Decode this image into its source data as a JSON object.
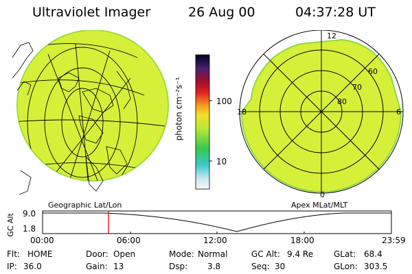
{
  "header": {
    "title": "Ultraviolet Imager",
    "date": "26 Aug 00",
    "time": "04:37:28 UT"
  },
  "geo_panel": {
    "label": "Geographic Lat/Lon"
  },
  "apex_panel": {
    "label": "Apex MLat/MLT",
    "mlt_labels": {
      "top": "12",
      "left": "18",
      "right": "6",
      "bottom": "0"
    },
    "lat_labels": [
      "60",
      "70",
      "80"
    ]
  },
  "colorbar": {
    "unit_label": "photon cm⁻²s⁻¹",
    "ticks": [
      "100",
      "10"
    ]
  },
  "timeline": {
    "ylabel": "GC Alt",
    "yticks": [
      "9.0",
      "1.8"
    ],
    "xticks": [
      "00:00",
      "06:00",
      "12:00",
      "18:00",
      "23:59"
    ],
    "current_time_marker": "04:37:28"
  },
  "info": {
    "row1": [
      {
        "label": "Flt:",
        "value": "HOME"
      },
      {
        "label": "Door:",
        "value": "Open"
      },
      {
        "label": "Mode:",
        "value": "Normal"
      },
      {
        "label": "GC Alt:",
        "value": "9.4 Re"
      },
      {
        "label": "GLat:",
        "value": "68.4"
      }
    ],
    "row2": [
      {
        "label": "IP:",
        "value": "36.0"
      },
      {
        "label": "Gain:",
        "value": "13"
      },
      {
        "label": "Dsp:",
        "value": "3.8"
      },
      {
        "label": "Seq:",
        "value": "30"
      },
      {
        "label": "GLon:",
        "value": "303.5"
      }
    ]
  },
  "colors": {
    "image_fill": "#d6f03a",
    "image_edge": "#8fd93c",
    "marker": "#e00000"
  }
}
